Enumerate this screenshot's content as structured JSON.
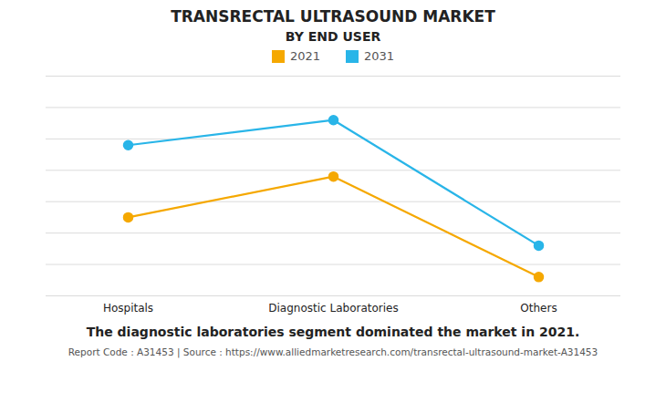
{
  "chart_data": {
    "type": "line",
    "title": "TRANSRECTAL ULTRASOUND MARKET",
    "subtitle": "BY END USER",
    "categories": [
      "Hospitals",
      "Diagnostic Laboratories",
      "Others"
    ],
    "series": [
      {
        "name": "2021",
        "color": "#F5A800",
        "values": [
          2.5,
          3.8,
          0.6
        ]
      },
      {
        "name": "2031",
        "color": "#29B5E8",
        "values": [
          4.8,
          5.6,
          1.6
        ]
      }
    ],
    "ylim": [
      0,
      7
    ],
    "yticks": [
      0,
      1,
      2,
      3,
      4,
      5,
      6,
      7
    ],
    "grid": true,
    "tick_labels": "x",
    "legend": "top",
    "marker": "circle",
    "annotations": [
      "The diagnostic laboratories segment dominated the market in 2021.",
      "Report Code : A31453  |  Source : https://www.alliedmarketresearch.com/transrectal-ultrasound-market-A31453"
    ]
  }
}
